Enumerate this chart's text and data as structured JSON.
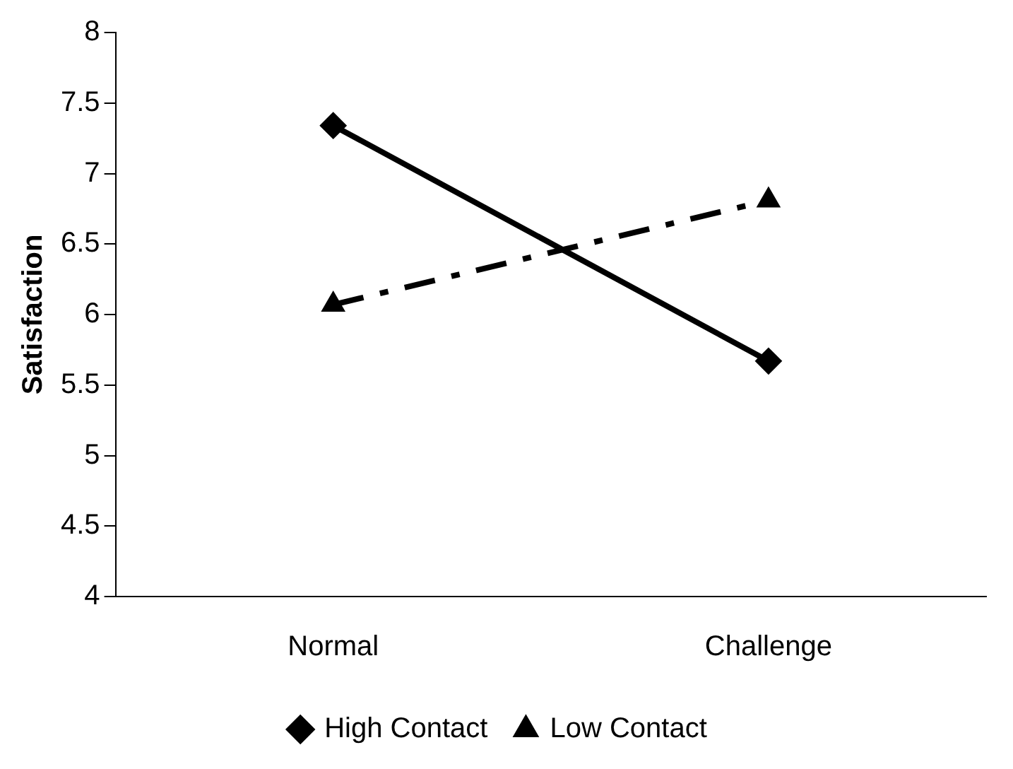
{
  "chart_data": {
    "type": "line",
    "ylabel": "Satisfaction",
    "categories": [
      "Normal",
      "Challenge"
    ],
    "series": [
      {
        "name": "High Contact",
        "color": "#000000",
        "values": [
          7.34,
          5.67
        ],
        "marker": "diamond",
        "line_style": "solid"
      },
      {
        "name": "Low Contact",
        "color": "#000000",
        "values": [
          6.07,
          6.81
        ],
        "marker": "triangle",
        "line_style": "dashed"
      }
    ],
    "ylim": [
      4,
      8
    ],
    "yticks": [
      4,
      4.5,
      5,
      5.5,
      6,
      6.5,
      7,
      7.5,
      8
    ],
    "grid": false,
    "legend": "bottom"
  }
}
